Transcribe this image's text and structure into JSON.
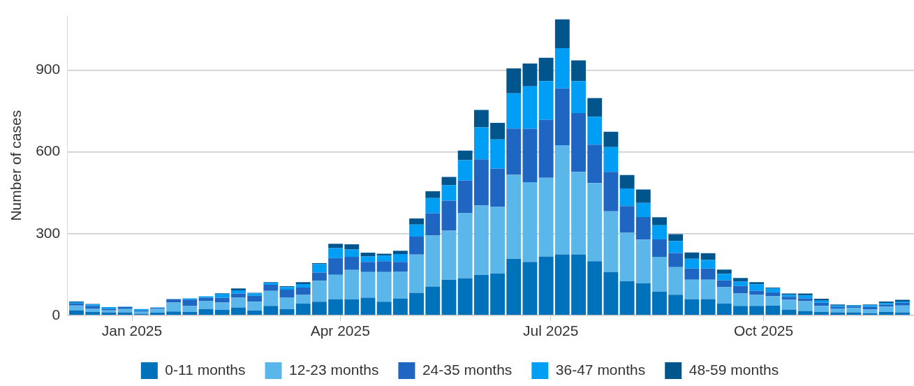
{
  "chart_data": {
    "type": "bar",
    "stacked": true,
    "ylabel": "Number of cases",
    "x": [
      "2024-12-08",
      "2024-12-15",
      "2024-12-22",
      "2024-12-29",
      "2025-01-05",
      "2025-01-12",
      "2025-01-19",
      "2025-01-26",
      "2025-02-02",
      "2025-02-09",
      "2025-02-16",
      "2025-02-23",
      "2025-03-02",
      "2025-03-09",
      "2025-03-16",
      "2025-03-23",
      "2025-03-30",
      "2025-04-06",
      "2025-04-13",
      "2025-04-20",
      "2025-04-27",
      "2025-05-04",
      "2025-05-11",
      "2025-05-18",
      "2025-05-25",
      "2025-06-01",
      "2025-06-08",
      "2025-06-15",
      "2025-06-22",
      "2025-06-29",
      "2025-07-06",
      "2025-07-13",
      "2025-07-20",
      "2025-07-27",
      "2025-08-03",
      "2025-08-10",
      "2025-08-17",
      "2025-08-24",
      "2025-08-31",
      "2025-09-07",
      "2025-09-14",
      "2025-09-21",
      "2025-09-28",
      "2025-10-05",
      "2025-10-12",
      "2025-10-19",
      "2025-10-26",
      "2025-11-02",
      "2025-11-09",
      "2025-11-16",
      "2025-11-23",
      "2025-11-30"
    ],
    "series": [
      {
        "name": "0-11 months",
        "color": "#0072bc",
        "values": [
          19,
          12,
          11,
          11,
          6,
          10,
          14,
          12,
          23,
          20,
          29,
          18,
          35,
          23,
          43,
          50,
          59,
          59,
          65,
          50,
          62,
          83,
          106,
          131,
          136,
          149,
          154,
          208,
          196,
          216,
          224,
          224,
          199,
          159,
          126,
          118,
          87,
          76,
          59,
          60,
          43,
          35,
          35,
          36,
          21,
          16,
          12,
          11,
          11,
          8,
          12,
          11
        ]
      },
      {
        "name": "12-23 months",
        "color": "#5bb6ea",
        "values": [
          17,
          13,
          7,
          12,
          9,
          14,
          33,
          22,
          29,
          27,
          36,
          32,
          55,
          43,
          32,
          77,
          90,
          108,
          94,
          109,
          99,
          140,
          187,
          180,
          239,
          254,
          244,
          308,
          293,
          289,
          401,
          303,
          287,
          223,
          177,
          160,
          128,
          101,
          72,
          71,
          60,
          45,
          40,
          34,
          36,
          36,
          23,
          14,
          16,
          14,
          20,
          25
        ]
      },
      {
        "name": "24-35 months",
        "color": "#1f66c3",
        "values": [
          8,
          10,
          5,
          8,
          3,
          4,
          13,
          24,
          13,
          18,
          15,
          22,
          22,
          28,
          27,
          30,
          61,
          48,
          37,
          40,
          35,
          66,
          82,
          110,
          120,
          170,
          141,
          170,
          196,
          213,
          208,
          216,
          141,
          145,
          98,
          83,
          64,
          52,
          41,
          41,
          26,
          28,
          15,
          15,
          11,
          10,
          11,
          6,
          5,
          9,
          7,
          10
        ]
      },
      {
        "name": "36-47 months",
        "color": "#009ff5",
        "values": [
          4,
          5,
          7,
          1,
          5,
          1,
          null,
          4,
          5,
          14,
          12,
          9,
          8,
          10,
          13,
          31,
          37,
          27,
          20,
          20,
          29,
          44,
          56,
          57,
          75,
          117,
          107,
          129,
          156,
          142,
          148,
          117,
          102,
          91,
          65,
          52,
          52,
          44,
          36,
          31,
          23,
          16,
          24,
          14,
          7,
          11,
          8,
          5,
          4,
          6,
          6,
          5
        ]
      },
      {
        "name": "48-59 months",
        "color": "#00558c",
        "values": [
          3,
          2,
          null,
          0,
          0,
          0,
          0,
          0,
          null,
          2,
          7,
          2,
          2,
          3,
          7,
          4,
          16,
          19,
          14,
          7,
          12,
          23,
          25,
          30,
          35,
          64,
          61,
          92,
          84,
          86,
          106,
          76,
          69,
          56,
          49,
          49,
          29,
          25,
          23,
          25,
          16,
          13,
          8,
          3,
          5,
          7,
          7,
          4,
          2,
          3,
          6,
          6
        ]
      }
    ],
    "xlim": [
      "2024-12-04",
      "2025-12-05"
    ],
    "xticks": [
      {
        "value": "2025-01-01",
        "label": "Jan 2025"
      },
      {
        "value": "2025-04-01",
        "label": "Apr 2025"
      },
      {
        "value": "2025-07-01",
        "label": "Jul 2025"
      },
      {
        "value": "2025-10-01",
        "label": "Oct 2025"
      }
    ],
    "ylim": [
      0,
      1100
    ],
    "yticks": [
      0,
      300,
      600,
      900
    ],
    "grid": "y",
    "legend": "bottom"
  }
}
